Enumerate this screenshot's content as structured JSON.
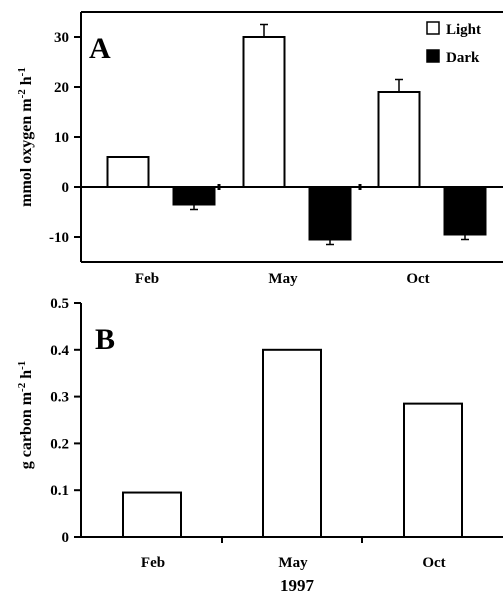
{
  "chart_data": [
    {
      "panel_label": "A",
      "type": "bar",
      "categories": [
        "Feb",
        "May",
        "Oct"
      ],
      "series": [
        {
          "name": "Light",
          "color": "#ffffff",
          "values": [
            6,
            30,
            19
          ],
          "error": [
            0,
            2.5,
            2.5
          ]
        },
        {
          "name": "Dark",
          "color": "#000000",
          "values": [
            -3.5,
            -10.5,
            -9.5
          ],
          "error": [
            1,
            1,
            1
          ]
        }
      ],
      "ylabel": "mmol oxygen m-2 h-1",
      "ylim": [
        -15,
        35
      ],
      "yticks": [
        "30",
        "20",
        "10",
        "0",
        "-10"
      ],
      "ytick_values": [
        30,
        20,
        10,
        0,
        -10
      ],
      "legend_position": "top-right",
      "grid": false
    },
    {
      "panel_label": "B",
      "type": "bar",
      "categories": [
        "Feb",
        "May",
        "Oct"
      ],
      "series": [
        {
          "color": "#ffffff",
          "values": [
            0.095,
            0.4,
            0.285
          ]
        }
      ],
      "ylabel": "g carbon m-2 h-1",
      "xlabel": "1997",
      "ylim": [
        0,
        0.5
      ],
      "yticks": [
        "0.5",
        "0.4",
        "0.3",
        "0.2",
        "0.1",
        "0"
      ],
      "ytick_values": [
        0.5,
        0.4,
        0.3,
        0.2,
        0.1,
        0
      ],
      "grid": false
    }
  ]
}
